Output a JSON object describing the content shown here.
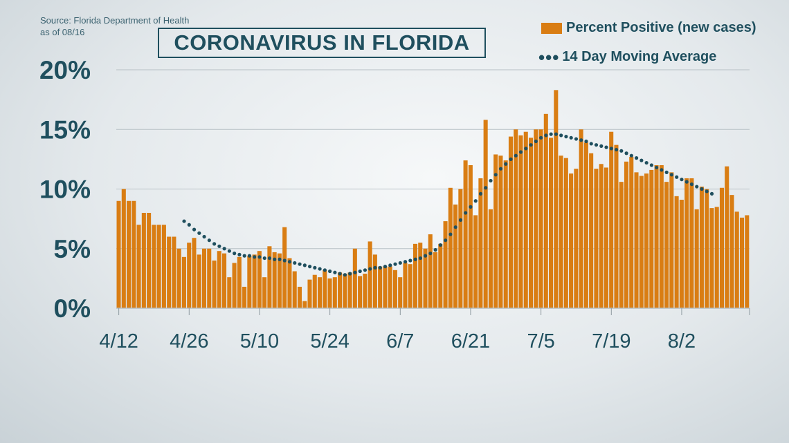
{
  "source": {
    "line1": "Source: Florida Department of Health",
    "line2": "as of 08/16"
  },
  "colors": {
    "bar": "#d97d13",
    "line": "#1f4f5e",
    "grid": "#b8c1c6",
    "text": "#1f4f5e"
  },
  "chart_data": {
    "type": "bar",
    "title": "CORONAVIRUS IN FLORIDA",
    "ylim": [
      0,
      20
    ],
    "yticks": [
      "0%",
      "5%",
      "10%",
      "15%",
      "20%"
    ],
    "ytick_values": [
      0,
      5,
      10,
      15,
      20
    ],
    "grid": true,
    "legend": "top-right",
    "x_tick_labels": [
      "4/12",
      "4/26",
      "5/10",
      "5/24",
      "6/7",
      "6/21",
      "7/5",
      "7/19",
      "8/2"
    ],
    "x_tick_days": [
      0,
      14,
      28,
      42,
      56,
      70,
      84,
      98,
      112
    ],
    "series": [
      {
        "name": "Percent Positive (new cases)",
        "kind": "bar",
        "values": [
          9.0,
          10.0,
          9.0,
          9.0,
          7.0,
          8.0,
          8.0,
          7.0,
          7.0,
          7.0,
          6.0,
          6.0,
          5.0,
          4.3,
          5.5,
          5.9,
          4.5,
          5.0,
          5.0,
          4.0,
          4.8,
          4.6,
          2.6,
          3.8,
          4.3,
          1.8,
          4.4,
          4.5,
          4.8,
          2.6,
          5.2,
          4.7,
          4.6,
          6.8,
          4.2,
          3.1,
          1.8,
          0.6,
          2.4,
          2.8,
          2.6,
          3.2,
          2.5,
          2.6,
          3.0,
          2.9,
          3.0,
          5.0,
          2.7,
          2.9,
          5.6,
          4.5,
          3.5,
          3.5,
          3.5,
          3.2,
          2.6,
          3.8,
          3.7,
          5.4,
          5.5,
          5.0,
          6.2,
          4.7,
          5.4,
          7.3,
          10.1,
          8.7,
          10.0,
          12.4,
          12.0,
          7.8,
          10.9,
          15.8,
          8.3,
          12.9,
          12.8,
          12.4,
          14.4,
          15.0,
          14.5,
          14.8,
          14.3,
          15.0,
          15.0,
          16.3,
          14.3,
          18.3,
          12.8,
          12.6,
          11.3,
          11.7,
          15.0,
          13.9,
          13.0,
          11.7,
          12.1,
          11.8,
          14.8,
          13.7,
          10.6,
          12.3,
          12.7,
          11.4,
          11.1,
          11.3,
          11.6,
          12.0,
          12.0,
          10.6,
          11.4,
          9.4,
          9.1,
          10.9,
          10.9,
          8.3,
          10.2,
          10.0,
          8.4,
          8.5,
          10.1,
          11.9,
          9.5,
          8.1,
          7.6,
          7.8
        ],
        "color": "#d97d13"
      },
      {
        "name": "14 Day Moving Average",
        "kind": "dotted-line",
        "start_index": 13,
        "values": [
          7.3,
          7.0,
          6.6,
          6.3,
          6.0,
          5.7,
          5.4,
          5.2,
          5.0,
          4.8,
          4.6,
          4.5,
          4.4,
          4.4,
          4.3,
          4.3,
          4.2,
          4.2,
          4.1,
          4.1,
          4.0,
          3.9,
          3.8,
          3.7,
          3.6,
          3.5,
          3.4,
          3.3,
          3.2,
          3.1,
          3.0,
          2.9,
          2.8,
          2.9,
          3.0,
          3.1,
          3.2,
          3.3,
          3.4,
          3.4,
          3.5,
          3.6,
          3.7,
          3.8,
          3.9,
          4.0,
          4.1,
          4.2,
          4.4,
          4.6,
          4.9,
          5.3,
          5.7,
          6.2,
          6.8,
          7.4,
          8.0,
          8.5,
          9.0,
          9.6,
          10.1,
          10.7,
          11.2,
          11.7,
          12.1,
          12.5,
          12.8,
          13.1,
          13.4,
          13.7,
          14.0,
          14.3,
          14.5,
          14.6,
          14.6,
          14.5,
          14.4,
          14.3,
          14.2,
          14.1,
          14.0,
          13.8,
          13.7,
          13.6,
          13.5,
          13.4,
          13.3,
          13.2,
          13.0,
          12.8,
          12.6,
          12.4,
          12.2,
          12.0,
          11.8,
          11.6,
          11.4,
          11.2,
          11.0,
          10.8,
          10.6,
          10.4,
          10.2,
          10.0,
          9.8,
          9.6
        ]
      }
    ]
  }
}
